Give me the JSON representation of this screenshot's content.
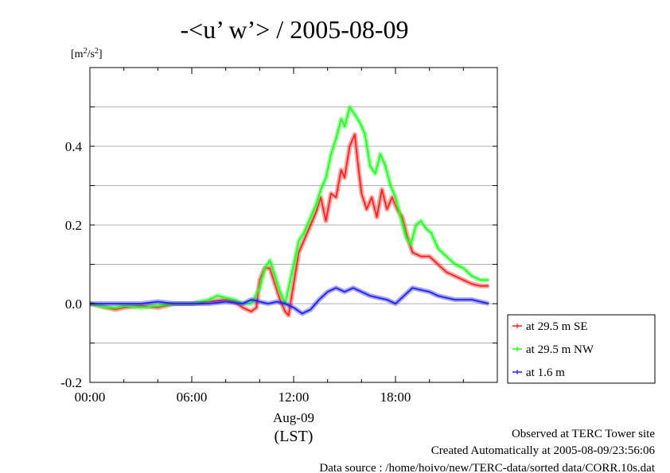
{
  "chart_data": {
    "type": "line",
    "title": "-<u’ w’> / 2005-08-09",
    "ylabel_unit": {
      "base": "[m",
      "sup1": "2",
      "mid": "/s",
      "sup2": "2",
      "end": "]"
    },
    "xlabel_date": "Aug-09",
    "xlabel_tz": "(LST)",
    "ylim": [
      -0.2,
      0.6
    ],
    "xlim": [
      0,
      24
    ],
    "yticks": [
      {
        "v": -0.2,
        "label": "-0.2"
      },
      {
        "v": 0.0,
        "label": "0.0"
      },
      {
        "v": 0.2,
        "label": "0.2"
      },
      {
        "v": 0.4,
        "label": "0.4"
      }
    ],
    "xticks": [
      {
        "v": 0,
        "label": "00:00"
      },
      {
        "v": 6,
        "label": "06:00"
      },
      {
        "v": 12,
        "label": "12:00"
      },
      {
        "v": 18,
        "label": "18:00"
      }
    ],
    "grid": true,
    "legend_position": "right-bottom",
    "series": [
      {
        "name": "at 29.5 m SE",
        "color": "#ff2020",
        "points": [
          [
            0,
            0.0
          ],
          [
            0.5,
            -0.005
          ],
          [
            1,
            -0.01
          ],
          [
            1.5,
            -0.015
          ],
          [
            2,
            -0.01
          ],
          [
            3,
            -0.005
          ],
          [
            4,
            -0.01
          ],
          [
            5,
            0.0
          ],
          [
            6,
            0.0
          ],
          [
            7,
            0.005
          ],
          [
            8,
            0.01
          ],
          [
            8.5,
            0.005
          ],
          [
            9,
            -0.01
          ],
          [
            9.5,
            -0.02
          ],
          [
            9.8,
            -0.01
          ],
          [
            10,
            0.06
          ],
          [
            10.3,
            0.09
          ],
          [
            10.6,
            0.09
          ],
          [
            10.9,
            0.05
          ],
          [
            11.2,
            0.01
          ],
          [
            11.5,
            -0.02
          ],
          [
            11.7,
            -0.03
          ],
          [
            12,
            0.05
          ],
          [
            12.3,
            0.13
          ],
          [
            12.6,
            0.16
          ],
          [
            13,
            0.2
          ],
          [
            13.3,
            0.23
          ],
          [
            13.6,
            0.27
          ],
          [
            13.9,
            0.21
          ],
          [
            14.2,
            0.28
          ],
          [
            14.5,
            0.27
          ],
          [
            14.8,
            0.34
          ],
          [
            15,
            0.32
          ],
          [
            15.3,
            0.4
          ],
          [
            15.6,
            0.43
          ],
          [
            15.8,
            0.35
          ],
          [
            16,
            0.28
          ],
          [
            16.3,
            0.24
          ],
          [
            16.6,
            0.27
          ],
          [
            16.9,
            0.22
          ],
          [
            17.2,
            0.29
          ],
          [
            17.5,
            0.24
          ],
          [
            17.8,
            0.27
          ],
          [
            18.1,
            0.24
          ],
          [
            18.4,
            0.22
          ],
          [
            18.7,
            0.17
          ],
          [
            19,
            0.13
          ],
          [
            19.5,
            0.12
          ],
          [
            20,
            0.12
          ],
          [
            20.5,
            0.1
          ],
          [
            21,
            0.08
          ],
          [
            21.5,
            0.07
          ],
          [
            22,
            0.06
          ],
          [
            22.5,
            0.05
          ],
          [
            23,
            0.045
          ],
          [
            23.5,
            0.045
          ]
        ]
      },
      {
        "name": "at 29.5 m NW",
        "color": "#20ff20",
        "points": [
          [
            0,
            0.0
          ],
          [
            0.5,
            -0.005
          ],
          [
            1,
            -0.01
          ],
          [
            1.5,
            -0.01
          ],
          [
            2,
            -0.005
          ],
          [
            3,
            -0.01
          ],
          [
            4,
            -0.005
          ],
          [
            5,
            0.0
          ],
          [
            6,
            0.0
          ],
          [
            7,
            0.01
          ],
          [
            7.5,
            0.02
          ],
          [
            8,
            0.015
          ],
          [
            8.5,
            0.01
          ],
          [
            9,
            0.0
          ],
          [
            9.5,
            0.0
          ],
          [
            10,
            0.04
          ],
          [
            10.3,
            0.09
          ],
          [
            10.6,
            0.11
          ],
          [
            10.9,
            0.07
          ],
          [
            11.2,
            0.03
          ],
          [
            11.5,
            0.0
          ],
          [
            12,
            0.1
          ],
          [
            12.3,
            0.16
          ],
          [
            12.6,
            0.18
          ],
          [
            13,
            0.22
          ],
          [
            13.3,
            0.25
          ],
          [
            13.6,
            0.29
          ],
          [
            13.9,
            0.32
          ],
          [
            14.2,
            0.38
          ],
          [
            14.5,
            0.42
          ],
          [
            14.8,
            0.47
          ],
          [
            15,
            0.45
          ],
          [
            15.3,
            0.5
          ],
          [
            15.6,
            0.48
          ],
          [
            15.9,
            0.46
          ],
          [
            16.2,
            0.43
          ],
          [
            16.5,
            0.35
          ],
          [
            16.8,
            0.33
          ],
          [
            17.1,
            0.38
          ],
          [
            17.4,
            0.35
          ],
          [
            17.7,
            0.3
          ],
          [
            18,
            0.27
          ],
          [
            18.3,
            0.22
          ],
          [
            18.6,
            0.17
          ],
          [
            18.9,
            0.15
          ],
          [
            19.2,
            0.2
          ],
          [
            19.5,
            0.21
          ],
          [
            19.8,
            0.19
          ],
          [
            20.1,
            0.18
          ],
          [
            20.5,
            0.14
          ],
          [
            21,
            0.12
          ],
          [
            21.5,
            0.1
          ],
          [
            22,
            0.09
          ],
          [
            22.5,
            0.07
          ],
          [
            23,
            0.06
          ],
          [
            23.5,
            0.06
          ]
        ]
      },
      {
        "name": "at 1.6 m",
        "color": "#2020ff",
        "points": [
          [
            0,
            0.0
          ],
          [
            1,
            0.0
          ],
          [
            2,
            0.0
          ],
          [
            3,
            0.0
          ],
          [
            4,
            0.005
          ],
          [
            5,
            0.0
          ],
          [
            6,
            0.0
          ],
          [
            7,
            0.0
          ],
          [
            8,
            0.005
          ],
          [
            9,
            0.0
          ],
          [
            9.5,
            0.01
          ],
          [
            10,
            0.005
          ],
          [
            10.5,
            0.0
          ],
          [
            11,
            0.005
          ],
          [
            11.5,
            0.0
          ],
          [
            12,
            -0.01
          ],
          [
            12.5,
            -0.025
          ],
          [
            13,
            -0.015
          ],
          [
            13.5,
            0.01
          ],
          [
            14,
            0.03
          ],
          [
            14.5,
            0.04
          ],
          [
            15,
            0.03
          ],
          [
            15.5,
            0.04
          ],
          [
            16,
            0.03
          ],
          [
            16.5,
            0.02
          ],
          [
            17,
            0.015
          ],
          [
            17.5,
            0.01
          ],
          [
            18,
            0.0
          ],
          [
            18.5,
            0.02
          ],
          [
            19,
            0.04
          ],
          [
            19.5,
            0.035
          ],
          [
            20,
            0.03
          ],
          [
            20.5,
            0.02
          ],
          [
            21,
            0.015
          ],
          [
            21.5,
            0.01
          ],
          [
            22,
            0.01
          ],
          [
            22.5,
            0.01
          ],
          [
            23,
            0.005
          ],
          [
            23.5,
            0.0
          ]
        ]
      }
    ],
    "footer": [
      "Observed at TERC Tower site",
      "Created Automatically at 2005-08-09/23:56:06",
      "Data source : /home/hoivo/new/TERC-data/sorted  data/CORR.10s.dat"
    ]
  }
}
